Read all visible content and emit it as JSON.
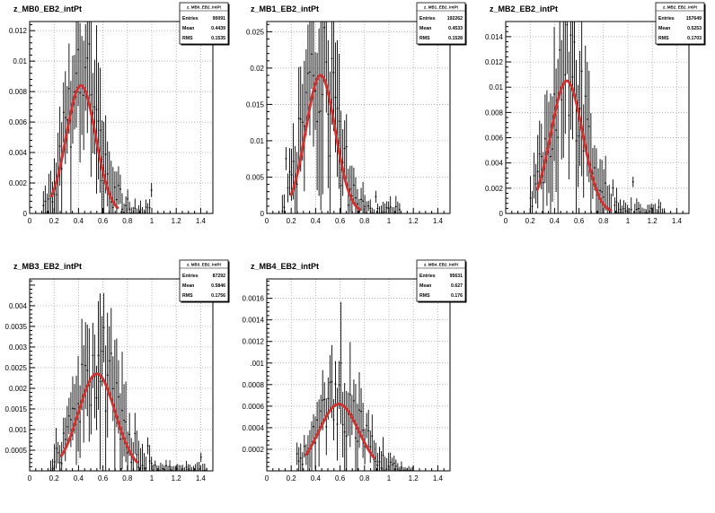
{
  "chart_data": [
    {
      "type": "histogram",
      "title": "z_MB0_EB2_intPt",
      "stats": {
        "name": "z_MB0_EB2_intPt",
        "entries": "90091",
        "mean": "0.4439",
        "rms": "0.1535"
      },
      "xlim": [
        0,
        1.5
      ],
      "ylim": [
        0,
        0.0126
      ],
      "x_ticks": [
        0,
        0.2,
        0.4,
        0.6,
        0.8,
        1.0,
        1.2,
        1.4
      ],
      "x_tick_labels": [
        "0",
        "0.2",
        "0.4",
        "0.6",
        "0.8",
        "1",
        "1.2",
        "1.4"
      ],
      "y_ticks": [
        0,
        0.002,
        0.004,
        0.006,
        0.008,
        0.01,
        0.012
      ],
      "y_tick_labels": [
        "0",
        "0.002",
        "0.004",
        "0.006",
        "0.008",
        "0.01",
        "0.012"
      ],
      "grid": true,
      "fit": {
        "shape": "gaussian",
        "mean": 0.42,
        "sigma": 0.12,
        "amplitude": 0.0084,
        "range": [
          0.18,
          0.72
        ]
      },
      "histogram": {
        "shape": "noisy-gaussian",
        "mean": 0.43,
        "sigma": 0.13,
        "peak": 0.0086,
        "range": [
          0.1,
          1.0
        ],
        "seed": 11
      }
    },
    {
      "type": "histogram",
      "title": "z_MB1_EB2_intPt",
      "stats": {
        "name": "z_MB1_EB2_intPt",
        "entries": "192262",
        "mean": "0.4533",
        "rms": "0.1528"
      },
      "xlim": [
        0,
        1.5
      ],
      "ylim": [
        0,
        0.0264
      ],
      "x_ticks": [
        0,
        0.2,
        0.4,
        0.6,
        0.8,
        1.0,
        1.2,
        1.4
      ],
      "x_tick_labels": [
        "0",
        "0.2",
        "0.4",
        "0.6",
        "0.8",
        "1",
        "1.2",
        "1.4"
      ],
      "y_ticks": [
        0,
        0.005,
        0.01,
        0.015,
        0.02,
        0.025
      ],
      "y_tick_labels": [
        "0",
        "0.005",
        "0.01",
        "0.015",
        "0.02",
        "0.025"
      ],
      "grid": true,
      "fit": {
        "shape": "gaussian",
        "mean": 0.44,
        "sigma": 0.12,
        "amplitude": 0.019,
        "range": [
          0.2,
          0.76
        ]
      },
      "histogram": {
        "shape": "noisy-gaussian",
        "mean": 0.44,
        "sigma": 0.13,
        "peak": 0.019,
        "range": [
          0.12,
          1.1
        ],
        "seed": 23
      }
    },
    {
      "type": "histogram",
      "title": "z_MB2_EB2_intPt",
      "stats": {
        "name": "z_MB2_EB2_intPt",
        "entries": "157649",
        "mean": "0.5253",
        "rms": "0.1703"
      },
      "xlim": [
        0,
        1.5
      ],
      "ylim": [
        0,
        0.0152
      ],
      "x_ticks": [
        0,
        0.2,
        0.4,
        0.6,
        0.8,
        1.0,
        1.2,
        1.4
      ],
      "x_tick_labels": [
        "0",
        "0.2",
        "0.4",
        "0.6",
        "0.8",
        "1",
        "1.2",
        "1.4"
      ],
      "y_ticks": [
        0,
        0.002,
        0.004,
        0.006,
        0.008,
        0.01,
        0.012,
        0.014
      ],
      "y_tick_labels": [
        "0",
        "0.002",
        "0.004",
        "0.006",
        "0.008",
        "0.01",
        "0.012",
        "0.014"
      ],
      "grid": true,
      "fit": {
        "shape": "gaussian",
        "mean": 0.5,
        "sigma": 0.13,
        "amplitude": 0.0105,
        "range": [
          0.26,
          0.86
        ]
      },
      "histogram": {
        "shape": "noisy-gaussian",
        "mean": 0.51,
        "sigma": 0.14,
        "peak": 0.0108,
        "range": [
          0.2,
          1.3
        ],
        "seed": 37
      }
    },
    {
      "type": "histogram",
      "title": "z_MB3_EB2_intPt",
      "stats": {
        "name": "z_MB3_EB2_intPt",
        "entries": "87292",
        "mean": "0.5846",
        "rms": "0.1756"
      },
      "xlim": [
        0,
        1.5
      ],
      "ylim": [
        0,
        0.00465
      ],
      "x_ticks": [
        0,
        0.2,
        0.4,
        0.6,
        0.8,
        1.0,
        1.2,
        1.4
      ],
      "x_tick_labels": [
        "0",
        "0.2",
        "0.4",
        "0.6",
        "0.8",
        "1",
        "1.2",
        "1.4"
      ],
      "y_ticks": [
        0.0005,
        0.001,
        0.0015,
        0.002,
        0.0025,
        0.003,
        0.0035,
        0.004
      ],
      "y_tick_labels": [
        "0.0005",
        "0.001",
        "0.0015",
        "0.002",
        "0.0025",
        "0.003",
        "0.0035",
        "0.004"
      ],
      "grid": true,
      "fit": {
        "shape": "gaussian",
        "mean": 0.55,
        "sigma": 0.15,
        "amplitude": 0.00235,
        "range": [
          0.26,
          0.88
        ]
      },
      "histogram": {
        "shape": "noisy-gaussian",
        "mean": 0.56,
        "sigma": 0.16,
        "peak": 0.0025,
        "range": [
          0.16,
          1.45
        ],
        "seed": 51
      }
    },
    {
      "type": "histogram",
      "title": "z_MB4_EB2_intPt",
      "stats": {
        "name": "z_MB4_EB2_intPt",
        "entries": "95631",
        "mean": "0.627",
        "rms": "0.176"
      },
      "xlim": [
        0,
        1.5
      ],
      "ylim": [
        0,
        0.00178
      ],
      "x_ticks": [
        0,
        0.2,
        0.4,
        0.6,
        0.8,
        1.0,
        1.2,
        1.4
      ],
      "x_tick_labels": [
        "0",
        "0.2",
        "0.4",
        "0.6",
        "0.8",
        "1",
        "1.2",
        "1.4"
      ],
      "y_ticks": [
        0.0002,
        0.0004,
        0.0006,
        0.0008,
        0.001,
        0.0012,
        0.0014,
        0.0016
      ],
      "y_tick_labels": [
        "0.0002",
        "0.0004",
        "0.0006",
        "0.0008",
        ".001",
        "0.0012",
        "0.0014",
        "0.0016"
      ],
      "grid": true,
      "fit": {
        "shape": "gaussian",
        "mean": 0.59,
        "sigma": 0.16,
        "amplitude": 0.00062,
        "range": [
          0.32,
          0.88
        ]
      },
      "histogram": {
        "shape": "noisy-gaussian",
        "mean": 0.6,
        "sigma": 0.17,
        "peak": 0.00064,
        "range": [
          0.24,
          1.2
        ],
        "seed": 67
      }
    }
  ],
  "stats_labels": {
    "entries": "Entries",
    "mean": "Mean",
    "rms": "RMS"
  },
  "colors": {
    "fit": "#cc3333",
    "axis": "#000000",
    "grid": "#999999",
    "background": "#ffffff"
  }
}
